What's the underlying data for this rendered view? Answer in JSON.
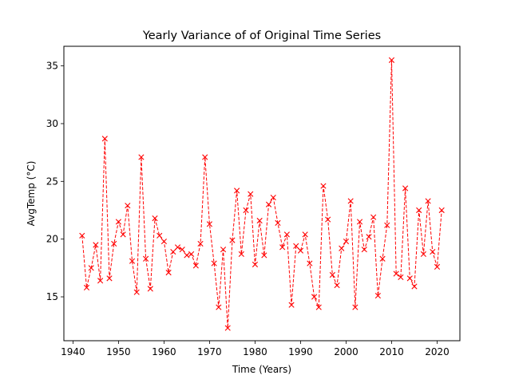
{
  "chart_data": {
    "type": "line",
    "title": "Yearly Variance of of Original Time Series",
    "xlabel": "Time (Years)",
    "ylabel": "AvgTemp (°C)",
    "xlim": [
      1938,
      2025
    ],
    "ylim": [
      11.2,
      36.7
    ],
    "xticks": [
      1940,
      1950,
      1960,
      1970,
      1980,
      1990,
      2000,
      2010,
      2020
    ],
    "yticks": [
      15,
      20,
      25,
      30,
      35
    ],
    "grid": false,
    "legend": "none",
    "series": [
      {
        "color": "#ff0000",
        "line_style": "dashed",
        "marker": "x",
        "x": [
          1942,
          1943,
          1944,
          1945,
          1946,
          1947,
          1948,
          1949,
          1950,
          1951,
          1952,
          1953,
          1954,
          1955,
          1956,
          1957,
          1958,
          1959,
          1960,
          1961,
          1962,
          1963,
          1964,
          1965,
          1966,
          1967,
          1968,
          1969,
          1970,
          1971,
          1972,
          1973,
          1974,
          1975,
          1976,
          1977,
          1978,
          1979,
          1980,
          1981,
          1982,
          1983,
          1984,
          1985,
          1986,
          1987,
          1988,
          1989,
          1990,
          1991,
          1992,
          1993,
          1994,
          1995,
          1996,
          1997,
          1998,
          1999,
          2000,
          2001,
          2002,
          2003,
          2004,
          2005,
          2006,
          2007,
          2008,
          2009,
          2010,
          2011,
          2012,
          2013,
          2014,
          2015,
          2016,
          2017,
          2018,
          2019,
          2020,
          2021
        ],
        "y": [
          20.3,
          15.8,
          17.5,
          19.5,
          16.4,
          28.7,
          16.6,
          19.6,
          21.5,
          20.4,
          22.9,
          18.1,
          15.4,
          27.1,
          18.3,
          15.7,
          21.8,
          20.3,
          19.8,
          17.1,
          18.9,
          19.3,
          19.1,
          18.6,
          18.7,
          17.7,
          19.6,
          27.1,
          21.3,
          17.9,
          14.1,
          19.1,
          12.3,
          19.9,
          24.2,
          18.7,
          22.5,
          23.9,
          17.8,
          21.6,
          18.6,
          23.0,
          23.6,
          21.4,
          19.3,
          20.4,
          14.3,
          19.4,
          19.0,
          20.4,
          17.9,
          15.0,
          14.1,
          24.6,
          21.7,
          16.9,
          16.0,
          19.2,
          19.8,
          23.3,
          14.1,
          21.5,
          19.1,
          20.2,
          21.9,
          15.1,
          18.3,
          21.2,
          35.5,
          17.0,
          16.7,
          24.4,
          16.6,
          15.9,
          22.5,
          18.7,
          23.3,
          18.9,
          17.6,
          22.5
        ]
      }
    ]
  }
}
